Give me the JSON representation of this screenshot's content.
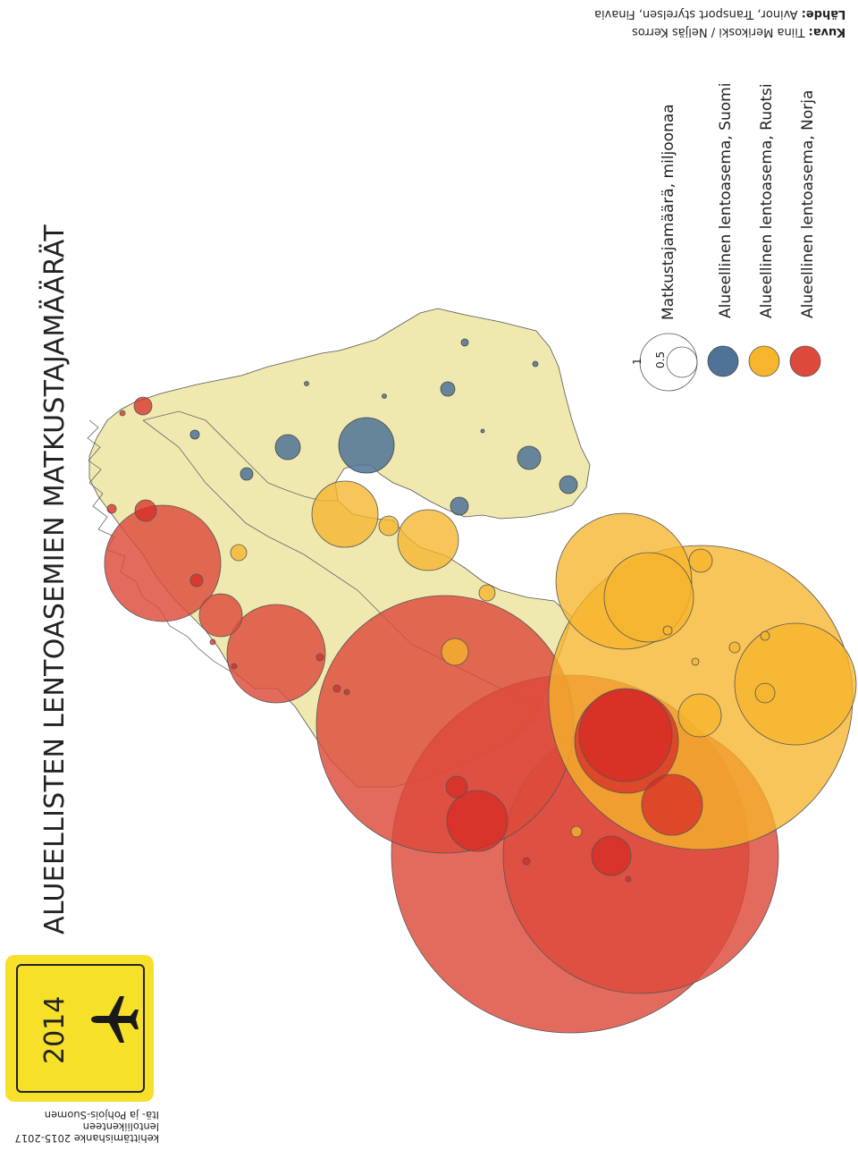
{
  "title": "ALUEELLISTEN LENTOASEMIEN MATKUSTAJAMÄÄRÄT",
  "badge": {
    "year": "2014",
    "icon": "airplane-icon"
  },
  "project": {
    "line1": "Itä- ja Pohjois-Suomen",
    "line2": "lentoliikenteen",
    "line3": "kehittämishanke 2015-2017"
  },
  "legend": {
    "size_title": "Matkustajamäärä, miljoonaa",
    "size_values": [
      "1",
      "0.5"
    ],
    "categories": [
      {
        "label": "Alueellinen lentoasema, Suomi",
        "color": "#4f7396"
      },
      {
        "label": "Alueellinen lentoasema, Ruotsi",
        "color": "#f6b52c"
      },
      {
        "label": "Alueellinen lentoasema, Norja",
        "color": "#dd4a3b"
      }
    ]
  },
  "credits": {
    "kuva_label": "Kuva:",
    "kuva_value": "Tiina Merikoski / Neljäs Kerros",
    "lahde_label": "Lähde:",
    "lahde_value": "Avinor, Transport styrelsen, Finavia"
  },
  "colors": {
    "land": "#efe9b0",
    "finland": "#4f7396",
    "sweden": "#f6b52c",
    "norway": "#dd4a3b",
    "badge": "#f6e02a"
  }
}
